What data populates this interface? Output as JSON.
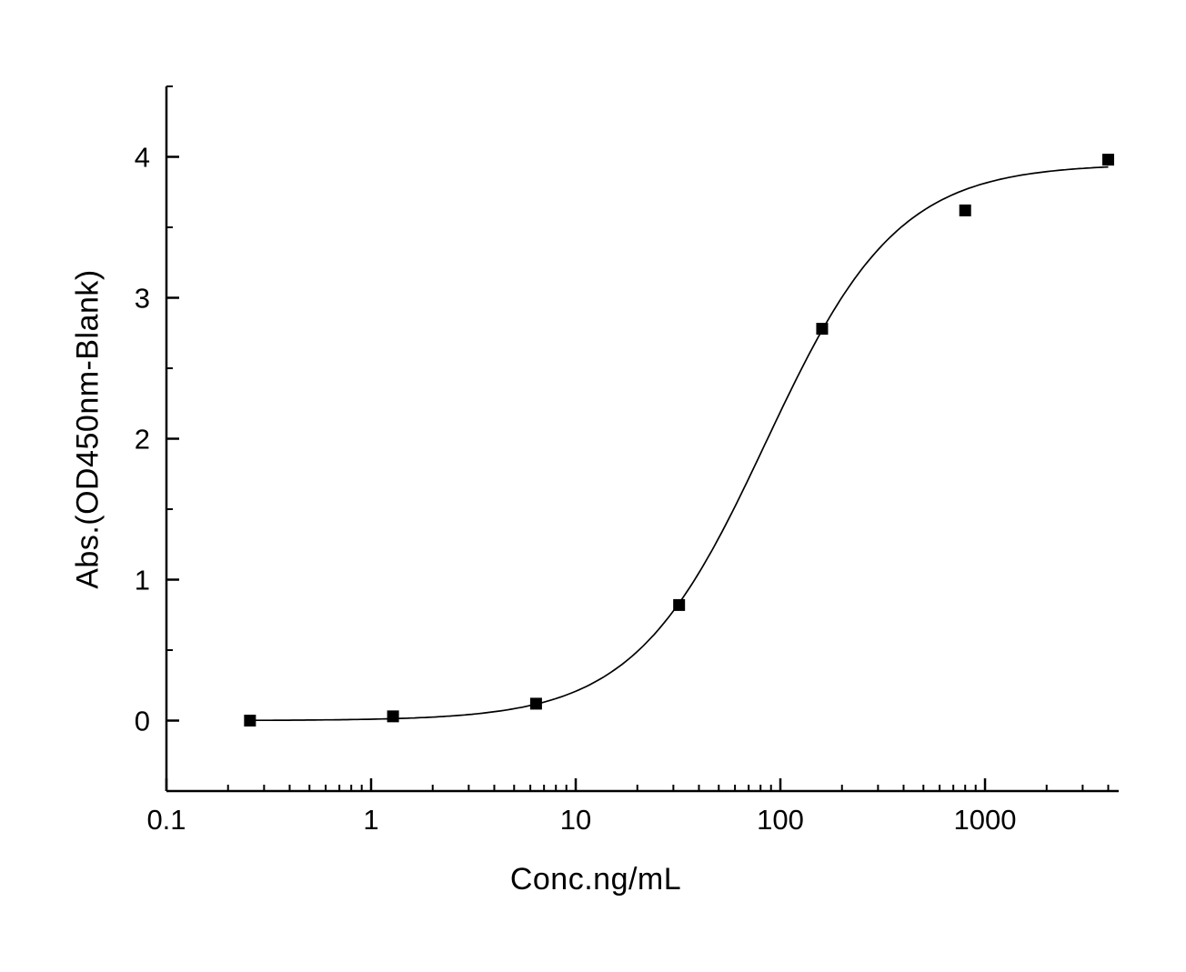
{
  "chart_data": {
    "type": "scatter",
    "title": "",
    "xlabel": "Conc.ng/mL",
    "ylabel": "Abs.(OD450nm-Blank)",
    "x_scale": "log",
    "y_scale": "linear",
    "xlim": [
      0.1,
      4500
    ],
    "ylim": [
      -0.5,
      4.5
    ],
    "xticks": [
      0.1,
      1,
      10,
      100,
      1000
    ],
    "xtick_labels": [
      "0.1",
      "1",
      "10",
      "100",
      "1000"
    ],
    "yticks": [
      0,
      1,
      2,
      3,
      4
    ],
    "ytick_labels": [
      "0",
      "1",
      "2",
      "3",
      "4"
    ],
    "y_minor_step": 0.5,
    "grid": false,
    "legend": "none",
    "background": "#ffffff",
    "axis_color": "#000000",
    "line_color": "#000000",
    "marker": {
      "shape": "square",
      "size": 13,
      "color": "#000000"
    },
    "points": [
      {
        "x": 0.256,
        "y": 0.0
      },
      {
        "x": 1.28,
        "y": 0.03
      },
      {
        "x": 6.4,
        "y": 0.12
      },
      {
        "x": 32,
        "y": 0.82
      },
      {
        "x": 160,
        "y": 2.78
      },
      {
        "x": 800,
        "y": 3.62
      },
      {
        "x": 4000,
        "y": 3.98
      }
    ],
    "fit": {
      "model": "4PL",
      "bottom": 0.0,
      "top": 3.95,
      "ec50": 85,
      "hill": 1.35,
      "x_start": 0.256,
      "x_end": 4000
    }
  }
}
